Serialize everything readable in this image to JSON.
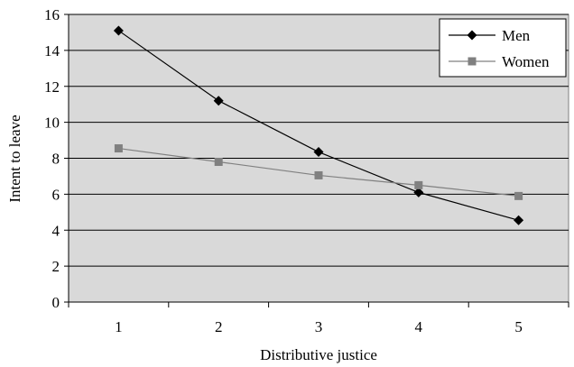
{
  "chart_data": {
    "type": "line",
    "title": "",
    "xlabel": "Distributive justice",
    "ylabel": "Intent to leave",
    "categories": [
      "1",
      "2",
      "3",
      "4",
      "5"
    ],
    "ylim": [
      0,
      16
    ],
    "yticks": [
      "0",
      "2",
      "4",
      "6",
      "8",
      "10",
      "12",
      "14",
      "16"
    ],
    "grid": true,
    "legend_position": "top-right",
    "series": [
      {
        "name": "Men",
        "values": [
          15.1,
          11.2,
          8.35,
          6.1,
          4.55
        ],
        "color": "#000000",
        "marker": "diamond"
      },
      {
        "name": "Women",
        "values": [
          8.55,
          7.8,
          7.05,
          6.5,
          5.9
        ],
        "color": "#808080",
        "marker": "square"
      }
    ],
    "plot_background": "#d9d9d9"
  }
}
